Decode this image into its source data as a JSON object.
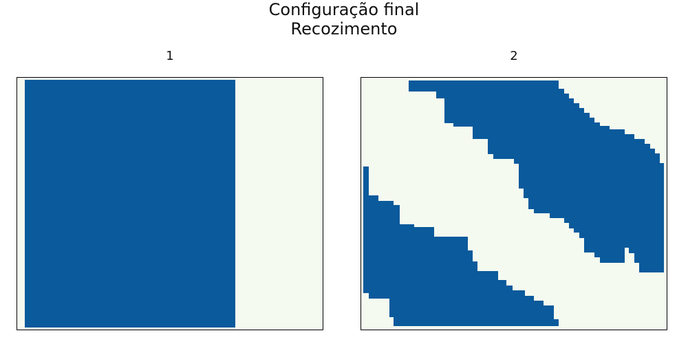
{
  "figure": {
    "title_line1": "Configuração final",
    "title_line2": "Recozimento"
  },
  "colors": {
    "background": "#ffffff",
    "state_a": "#f5faf0",
    "state_b": "#0a5a9c",
    "frame": "#000000"
  },
  "chart_data": [
    {
      "type": "heatmap",
      "title": "1",
      "cell_values": [
        "state_a",
        "state_b"
      ],
      "grid": false,
      "axes_ticks": false,
      "x_extent": [
        0,
        1
      ],
      "y_extent": [
        0,
        1
      ],
      "domain_b_fraction": 0.69,
      "description": "single vertical domain of state_b on the left, state_a on the right"
    },
    {
      "type": "heatmap",
      "title": "2",
      "cell_values": [
        "state_a",
        "state_b"
      ],
      "grid": false,
      "axes_ticks": false,
      "x_extent": [
        0,
        1
      ],
      "y_extent": [
        0,
        1
      ],
      "description": "two diagonal stripes of state_b on a state_a background"
    }
  ]
}
